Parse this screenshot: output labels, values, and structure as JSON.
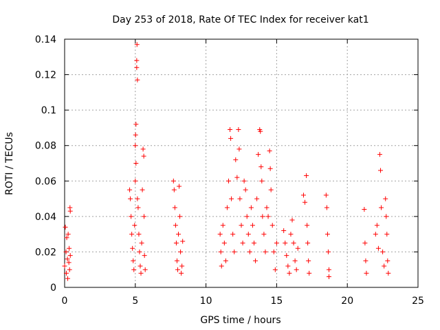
{
  "chart_data": {
    "type": "scatter",
    "title": "Day 253 of 2018, Rate Of TEC Index for receiver kat1",
    "xlabel": "GPS time / hours",
    "ylabel": "ROTI / TECUs",
    "xlim": [
      0,
      25
    ],
    "ylim": [
      0,
      0.14
    ],
    "x_ticks": [
      0,
      5,
      10,
      15,
      20,
      25
    ],
    "x_tick_labels": [
      "0",
      "5",
      "10",
      "15",
      "20",
      "25"
    ],
    "y_ticks": [
      0,
      0.02,
      0.04,
      0.06,
      0.08,
      0.1,
      0.12,
      0.14
    ],
    "y_tick_labels": [
      "0",
      "0.02",
      "0.04",
      "0.06",
      "0.08",
      "0.1",
      "0.12",
      "0.14"
    ],
    "grid": true,
    "marker": "+",
    "color": "#ff0000",
    "series": [
      {
        "name": "kat1",
        "points": [
          [
            0.0,
            0.012
          ],
          [
            0.05,
            0.034
          ],
          [
            0.1,
            0.02
          ],
          [
            0.12,
            0.008
          ],
          [
            0.15,
            0.028
          ],
          [
            0.2,
            0.016
          ],
          [
            0.22,
            0.005
          ],
          [
            0.25,
            0.03
          ],
          [
            0.3,
            0.014
          ],
          [
            0.32,
            0.022
          ],
          [
            0.35,
            0.01
          ],
          [
            0.38,
            0.045
          ],
          [
            0.4,
            0.043
          ],
          [
            0.4,
            0.018
          ],
          [
            4.6,
            0.055
          ],
          [
            4.65,
            0.05
          ],
          [
            4.7,
            0.04
          ],
          [
            4.75,
            0.03
          ],
          [
            4.8,
            0.022
          ],
          [
            4.85,
            0.015
          ],
          [
            4.9,
            0.01
          ],
          [
            4.95,
            0.035
          ],
          [
            5.0,
            0.06
          ],
          [
            5.0,
            0.08
          ],
          [
            5.02,
            0.086
          ],
          [
            5.05,
            0.092
          ],
          [
            5.05,
            0.07
          ],
          [
            5.1,
            0.128
          ],
          [
            5.1,
            0.124
          ],
          [
            5.12,
            0.137
          ],
          [
            5.15,
            0.117
          ],
          [
            5.15,
            0.05
          ],
          [
            5.2,
            0.045
          ],
          [
            5.25,
            0.03
          ],
          [
            5.3,
            0.02
          ],
          [
            5.35,
            0.012
          ],
          [
            5.4,
            0.008
          ],
          [
            5.45,
            0.025
          ],
          [
            5.5,
            0.055
          ],
          [
            5.55,
            0.078
          ],
          [
            5.6,
            0.074
          ],
          [
            5.62,
            0.04
          ],
          [
            5.65,
            0.018
          ],
          [
            5.7,
            0.01
          ],
          [
            7.7,
            0.06
          ],
          [
            7.75,
            0.055
          ],
          [
            7.8,
            0.045
          ],
          [
            7.85,
            0.035
          ],
          [
            7.9,
            0.025
          ],
          [
            7.95,
            0.015
          ],
          [
            8.0,
            0.01
          ],
          [
            8.05,
            0.03
          ],
          [
            8.1,
            0.057
          ],
          [
            8.15,
            0.04
          ],
          [
            8.2,
            0.02
          ],
          [
            8.25,
            0.008
          ],
          [
            8.3,
            0.012
          ],
          [
            8.35,
            0.026
          ],
          [
            11.0,
            0.03
          ],
          [
            11.05,
            0.02
          ],
          [
            11.1,
            0.012
          ],
          [
            11.2,
            0.035
          ],
          [
            11.3,
            0.025
          ],
          [
            11.4,
            0.015
          ],
          [
            11.5,
            0.045
          ],
          [
            11.6,
            0.06
          ],
          [
            11.7,
            0.089
          ],
          [
            11.75,
            0.084
          ],
          [
            11.8,
            0.05
          ],
          [
            11.9,
            0.03
          ],
          [
            12.0,
            0.02
          ],
          [
            12.1,
            0.072
          ],
          [
            12.2,
            0.062
          ],
          [
            12.3,
            0.089
          ],
          [
            12.35,
            0.078
          ],
          [
            12.4,
            0.05
          ],
          [
            12.5,
            0.035
          ],
          [
            12.6,
            0.025
          ],
          [
            12.7,
            0.06
          ],
          [
            12.8,
            0.055
          ],
          [
            12.9,
            0.04
          ],
          [
            13.0,
            0.03
          ],
          [
            13.1,
            0.02
          ],
          [
            13.2,
            0.045
          ],
          [
            13.3,
            0.035
          ],
          [
            13.4,
            0.025
          ],
          [
            13.5,
            0.015
          ],
          [
            13.6,
            0.05
          ],
          [
            13.7,
            0.075
          ],
          [
            13.8,
            0.089
          ],
          [
            13.85,
            0.088
          ],
          [
            13.9,
            0.068
          ],
          [
            13.95,
            0.06
          ],
          [
            14.0,
            0.04
          ],
          [
            14.1,
            0.03
          ],
          [
            14.2,
            0.02
          ],
          [
            14.3,
            0.045
          ],
          [
            14.4,
            0.04
          ],
          [
            14.5,
            0.077
          ],
          [
            14.55,
            0.067
          ],
          [
            14.6,
            0.055
          ],
          [
            14.7,
            0.035
          ],
          [
            14.8,
            0.02
          ],
          [
            14.9,
            0.01
          ],
          [
            15.0,
            0.025
          ],
          [
            15.5,
            0.032
          ],
          [
            15.6,
            0.025
          ],
          [
            15.7,
            0.018
          ],
          [
            15.8,
            0.012
          ],
          [
            15.9,
            0.008
          ],
          [
            16.0,
            0.03
          ],
          [
            16.1,
            0.038
          ],
          [
            16.2,
            0.025
          ],
          [
            16.3,
            0.015
          ],
          [
            16.4,
            0.01
          ],
          [
            16.5,
            0.022
          ],
          [
            16.9,
            0.052
          ],
          [
            17.0,
            0.048
          ],
          [
            17.1,
            0.063
          ],
          [
            17.15,
            0.035
          ],
          [
            17.2,
            0.025
          ],
          [
            17.25,
            0.015
          ],
          [
            17.3,
            0.008
          ],
          [
            18.5,
            0.052
          ],
          [
            18.55,
            0.045
          ],
          [
            18.6,
            0.03
          ],
          [
            18.65,
            0.02
          ],
          [
            18.7,
            0.01
          ],
          [
            18.7,
            0.006
          ],
          [
            21.2,
            0.044
          ],
          [
            21.25,
            0.025
          ],
          [
            21.3,
            0.015
          ],
          [
            21.35,
            0.008
          ],
          [
            22.0,
            0.03
          ],
          [
            22.1,
            0.035
          ],
          [
            22.2,
            0.022
          ],
          [
            22.3,
            0.075
          ],
          [
            22.35,
            0.066
          ],
          [
            22.4,
            0.045
          ],
          [
            22.5,
            0.02
          ],
          [
            22.6,
            0.012
          ],
          [
            22.7,
            0.05
          ],
          [
            22.75,
            0.04
          ],
          [
            22.8,
            0.03
          ],
          [
            22.85,
            0.015
          ],
          [
            22.9,
            0.008
          ]
        ]
      }
    ]
  }
}
